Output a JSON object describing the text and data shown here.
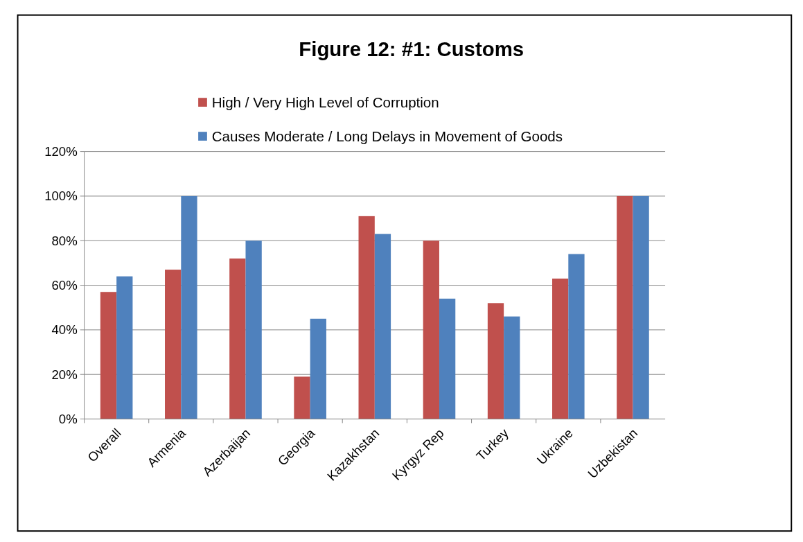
{
  "chart_data": {
    "type": "bar",
    "title": "Figure 12:  #1: Customs",
    "categories": [
      "Overall",
      "Armenia",
      "Azerbaijan",
      "Georgia",
      "Kazakhstan",
      "Kyrgyz Rep",
      "Turkey",
      "Ukraine",
      "Uzbekistan"
    ],
    "series": [
      {
        "name": "High / Very High Level of Corruption",
        "color": "#c0504d",
        "values": [
          57,
          67,
          72,
          19,
          91,
          80,
          52,
          63,
          100
        ]
      },
      {
        "name": "Causes Moderate / Long Delays in Movement of Goods",
        "color": "#4f81bd",
        "values": [
          64,
          100,
          80,
          45,
          83,
          54,
          46,
          74,
          100
        ]
      }
    ],
    "ylim": [
      0,
      120
    ],
    "yticks": [
      {
        "value": 0,
        "label": "0%"
      },
      {
        "value": 20,
        "label": "20%"
      },
      {
        "value": 40,
        "label": "40%"
      },
      {
        "value": 60,
        "label": "60%"
      },
      {
        "value": 80,
        "label": "80%"
      },
      {
        "value": 100,
        "label": "100%"
      },
      {
        "value": 120,
        "label": "120%"
      }
    ],
    "grid": "y",
    "legend": "top"
  }
}
